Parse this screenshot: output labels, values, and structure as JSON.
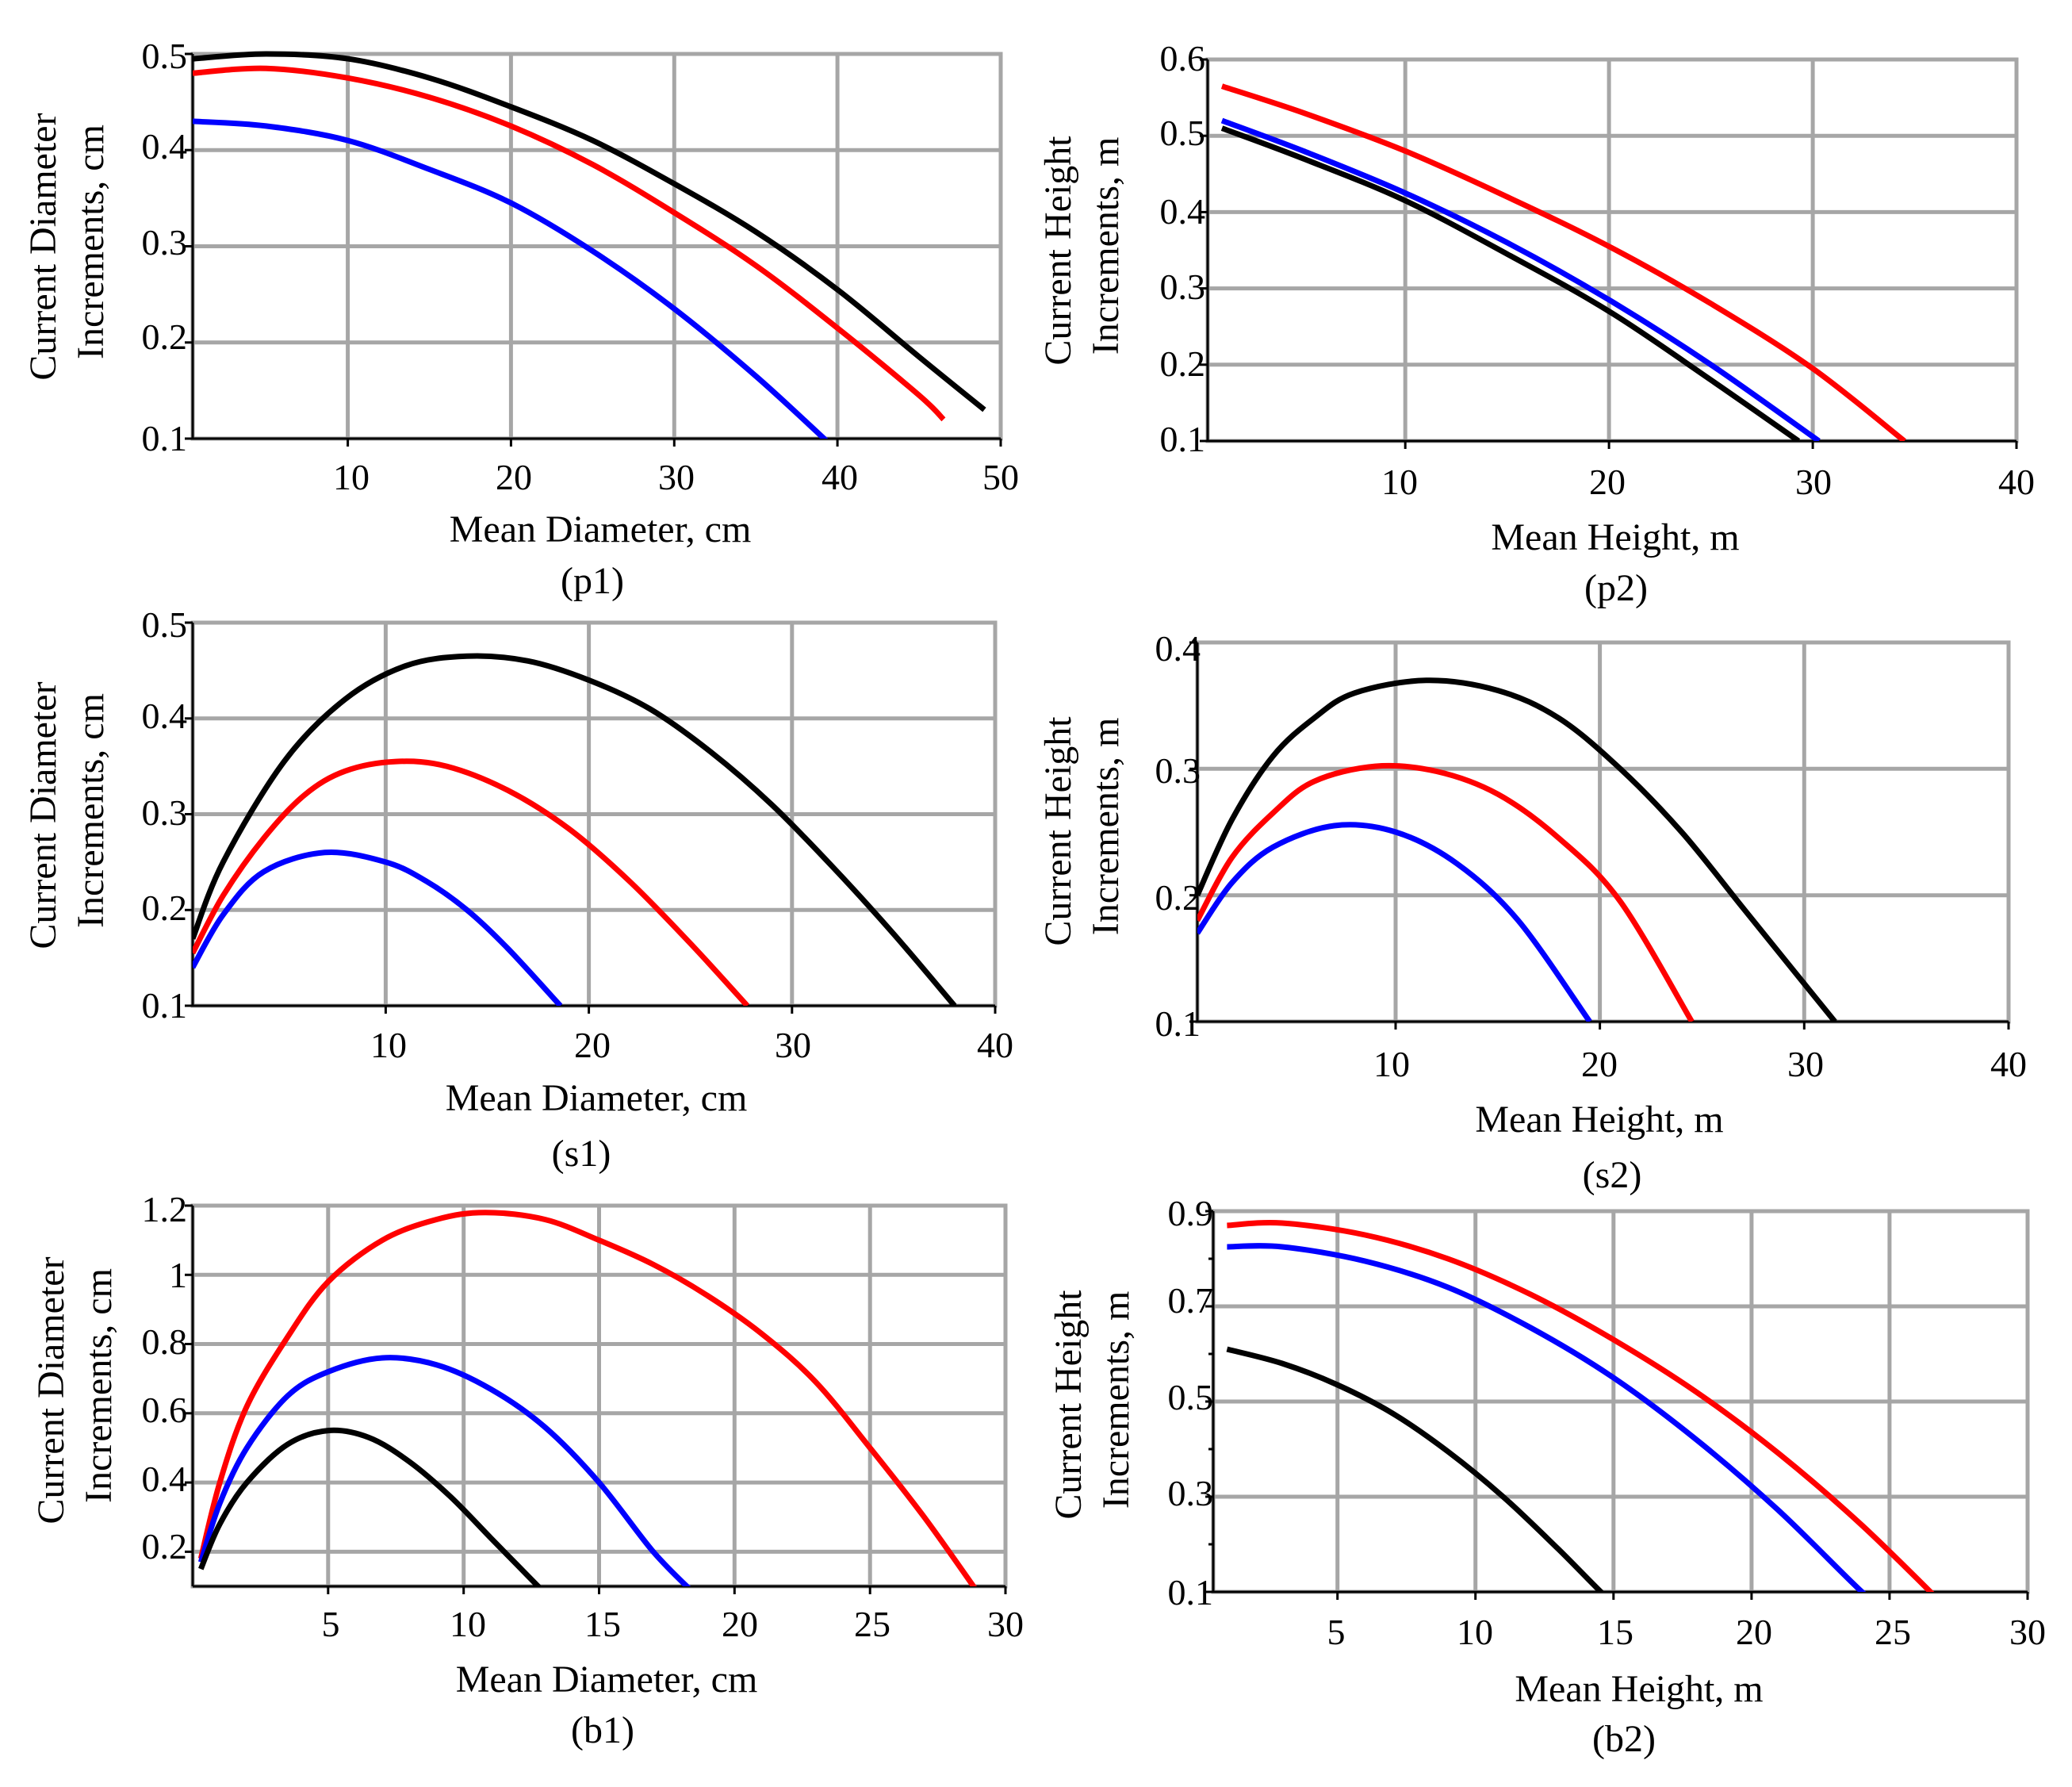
{
  "chart_data": [
    {
      "id": "p1",
      "type": "line",
      "caption": "(p1)",
      "xlabel": "Mean Diameter, cm",
      "ylabel_lines": [
        "Current Diameter",
        "Increments, cm"
      ],
      "xlim": [
        0.5,
        50
      ],
      "ylim": [
        0.1,
        0.5
      ],
      "xticks": [
        10,
        20,
        30,
        40,
        50
      ],
      "yticks": [
        0.1,
        0.2,
        0.3,
        0.4,
        0.5
      ],
      "grid": true,
      "series": [
        {
          "name": "black",
          "color": "#000000",
          "x": [
            0.5,
            5,
            10,
            15,
            20,
            25,
            30,
            35,
            40,
            45,
            49
          ],
          "y": [
            0.495,
            0.5,
            0.495,
            0.475,
            0.445,
            0.41,
            0.365,
            0.315,
            0.255,
            0.185,
            0.13
          ]
        },
        {
          "name": "red",
          "color": "#ff0000",
          "x": [
            0.5,
            5,
            10,
            15,
            20,
            25,
            30,
            35,
            40,
            45,
            46.5
          ],
          "y": [
            0.48,
            0.485,
            0.475,
            0.455,
            0.425,
            0.385,
            0.335,
            0.28,
            0.215,
            0.145,
            0.12
          ]
        },
        {
          "name": "blue",
          "color": "#0000ff",
          "x": [
            0.5,
            5,
            10,
            15,
            20,
            25,
            30,
            35,
            39.5
          ],
          "y": [
            0.43,
            0.425,
            0.41,
            0.38,
            0.345,
            0.295,
            0.235,
            0.165,
            0.095
          ]
        }
      ]
    },
    {
      "id": "p2",
      "type": "line",
      "caption": "(p2)",
      "xlabel": "Mean Height, m",
      "ylabel_lines": [
        "Current Height",
        "Increments, m"
      ],
      "xlim": [
        0.3,
        40
      ],
      "ylim": [
        0.1,
        0.6
      ],
      "xticks": [
        10,
        20,
        30,
        40
      ],
      "yticks": [
        0.1,
        0.2,
        0.3,
        0.4,
        0.5,
        0.6
      ],
      "grid": true,
      "series": [
        {
          "name": "red",
          "color": "#ff0000",
          "x": [
            1,
            5,
            10,
            15,
            20,
            25,
            30,
            34.5
          ],
          "y": [
            0.565,
            0.53,
            0.48,
            0.42,
            0.355,
            0.28,
            0.195,
            0.1
          ]
        },
        {
          "name": "blue",
          "color": "#0000ff",
          "x": [
            1,
            5,
            10,
            15,
            20,
            25,
            30.3
          ],
          "y": [
            0.52,
            0.48,
            0.425,
            0.36,
            0.285,
            0.2,
            0.1
          ]
        },
        {
          "name": "black",
          "color": "#000000",
          "x": [
            1,
            5,
            10,
            15,
            20,
            25,
            29.3
          ],
          "y": [
            0.51,
            0.47,
            0.415,
            0.345,
            0.27,
            0.18,
            0.1
          ]
        }
      ]
    },
    {
      "id": "s1",
      "type": "line",
      "caption": "(s1)",
      "xlabel": "Mean Diameter, cm",
      "ylabel_lines": [
        "Current Diameter",
        "Increments, cm"
      ],
      "xlim": [
        0.5,
        40
      ],
      "ylim": [
        0.1,
        0.5
      ],
      "xticks": [
        10,
        20,
        30,
        40
      ],
      "yticks": [
        0.1,
        0.2,
        0.3,
        0.4,
        0.5
      ],
      "grid": true,
      "series": [
        {
          "name": "black",
          "color": "#000000",
          "x": [
            0.5,
            2,
            5,
            8,
            11,
            14,
            17,
            20,
            23,
            26,
            29,
            32,
            35,
            38
          ],
          "y": [
            0.17,
            0.25,
            0.355,
            0.42,
            0.455,
            0.465,
            0.46,
            0.44,
            0.41,
            0.365,
            0.31,
            0.245,
            0.175,
            0.1
          ]
        },
        {
          "name": "red",
          "color": "#ff0000",
          "x": [
            0.5,
            2,
            4,
            6,
            8,
            10.5,
            13,
            16,
            19,
            22,
            25,
            27.8
          ],
          "y": [
            0.155,
            0.215,
            0.275,
            0.32,
            0.345,
            0.355,
            0.35,
            0.325,
            0.285,
            0.23,
            0.165,
            0.1
          ]
        },
        {
          "name": "blue",
          "color": "#0000ff",
          "x": [
            0.5,
            2,
            4,
            7,
            10,
            12,
            14,
            16,
            18.6
          ],
          "y": [
            0.14,
            0.195,
            0.24,
            0.26,
            0.25,
            0.23,
            0.2,
            0.16,
            0.1
          ]
        }
      ]
    },
    {
      "id": "s2",
      "type": "line",
      "caption": "(s2)",
      "xlabel": "Mean Height, m",
      "ylabel_lines": [
        "Current Height",
        "Increments, m"
      ],
      "xlim": [
        0.3,
        40
      ],
      "ylim": [
        0.1,
        0.4
      ],
      "xticks": [
        10,
        20,
        30,
        40
      ],
      "yticks": [
        0.1,
        0.2,
        0.3,
        0.4
      ],
      "grid": true,
      "series": [
        {
          "name": "black",
          "color": "#000000",
          "x": [
            0.3,
            2,
            4,
            6,
            8,
            11.5,
            15,
            18,
            21,
            24,
            27,
            29.5,
            31.5
          ],
          "y": [
            0.2,
            0.26,
            0.31,
            0.34,
            0.36,
            0.37,
            0.362,
            0.34,
            0.3,
            0.25,
            0.19,
            0.14,
            0.1
          ]
        },
        {
          "name": "red",
          "color": "#ff0000",
          "x": [
            0.3,
            2,
            4,
            6,
            9,
            12,
            15,
            18,
            21,
            24.5
          ],
          "y": [
            0.18,
            0.23,
            0.265,
            0.29,
            0.302,
            0.298,
            0.28,
            0.245,
            0.195,
            0.1
          ]
        },
        {
          "name": "blue",
          "color": "#0000ff",
          "x": [
            0.3,
            2,
            4,
            7,
            10,
            13,
            16,
            19.5
          ],
          "y": [
            0.17,
            0.21,
            0.238,
            0.255,
            0.25,
            0.225,
            0.18,
            0.1
          ]
        }
      ]
    },
    {
      "id": "b1",
      "type": "line",
      "caption": "(b1)",
      "xlabel": "Mean Diameter, cm",
      "ylabel_lines": [
        "Current Diameter",
        "Increments, cm"
      ],
      "xlim": [
        0,
        30
      ],
      "ylim": [
        0.1,
        1.2
      ],
      "xticks": [
        5,
        10,
        15,
        20,
        25,
        30
      ],
      "yticks": [
        0.2,
        0.4,
        0.6,
        0.8,
        1.0,
        1.2
      ],
      "grid": true,
      "series": [
        {
          "name": "red",
          "color": "#ff0000",
          "x": [
            0.3,
            1,
            2,
            3.5,
            5,
            7,
            9,
            10.8,
            13,
            15,
            17,
            19,
            21,
            23,
            25,
            27,
            29
          ],
          "y": [
            0.18,
            0.4,
            0.62,
            0.82,
            0.98,
            1.1,
            1.16,
            1.18,
            1.16,
            1.1,
            1.03,
            0.94,
            0.83,
            0.69,
            0.5,
            0.3,
            0.08
          ]
        },
        {
          "name": "blue",
          "color": "#0000ff",
          "x": [
            0.3,
            1,
            2,
            3.5,
            5,
            7,
            9,
            11,
            13,
            15,
            17,
            18.5
          ],
          "y": [
            0.17,
            0.34,
            0.5,
            0.65,
            0.72,
            0.76,
            0.74,
            0.67,
            0.56,
            0.4,
            0.2,
            0.08
          ]
        },
        {
          "name": "black",
          "color": "#000000",
          "x": [
            0.3,
            1,
            2,
            3.5,
            5,
            6.5,
            8,
            9.5,
            11,
            12,
            13
          ],
          "y": [
            0.15,
            0.28,
            0.4,
            0.51,
            0.55,
            0.53,
            0.46,
            0.36,
            0.24,
            0.16,
            0.08
          ]
        }
      ]
    },
    {
      "id": "b2",
      "type": "line",
      "caption": "(b2)",
      "xlabel": "Mean Height, m",
      "ylabel_lines": [
        "Current Height",
        "Increments, m"
      ],
      "xlim": [
        0.5,
        30
      ],
      "ylim": [
        0.1,
        0.9
      ],
      "xticks": [
        5,
        10,
        15,
        20,
        25,
        30
      ],
      "yticks": [
        0.1,
        0.3,
        0.5,
        0.7,
        0.9
      ],
      "minor_ytick_step": 0.1,
      "grid": true,
      "series": [
        {
          "name": "red",
          "color": "#ff0000",
          "x": [
            1,
            3,
            6,
            9,
            12,
            15,
            18,
            21,
            24,
            27
          ],
          "y": [
            0.87,
            0.875,
            0.85,
            0.8,
            0.725,
            0.63,
            0.52,
            0.39,
            0.24,
            0.07
          ]
        },
        {
          "name": "blue",
          "color": "#0000ff",
          "x": [
            1,
            3,
            6,
            9,
            12,
            15,
            18,
            21,
            24,
            24.8
          ],
          "y": [
            0.825,
            0.825,
            0.795,
            0.74,
            0.655,
            0.55,
            0.42,
            0.27,
            0.1,
            0.07
          ]
        },
        {
          "name": "black",
          "color": "#000000",
          "x": [
            1,
            3,
            5,
            7,
            9,
            11,
            13,
            15,
            15.5
          ],
          "y": [
            0.61,
            0.58,
            0.535,
            0.475,
            0.395,
            0.3,
            0.19,
            0.075,
            0.07
          ]
        }
      ]
    }
  ]
}
